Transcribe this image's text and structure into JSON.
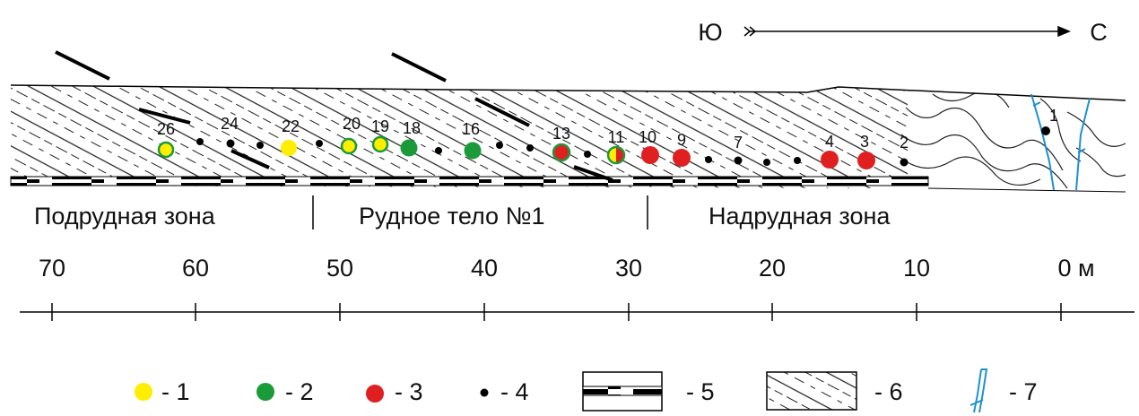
{
  "header": {
    "south": "Ю",
    "north": "С"
  },
  "zones": [
    "Подрудная зона",
    "Рудное тело №1",
    "Надрудная зона"
  ],
  "scale": [
    "70",
    "60",
    "50",
    "40",
    "30",
    "20",
    "10",
    "0 м"
  ],
  "samples": [
    "26",
    "24",
    "22",
    "20",
    "19",
    "18",
    "16",
    "13",
    "11",
    "10",
    "9",
    "7",
    "4",
    "3",
    "2",
    "1"
  ],
  "legend": [
    "- 1",
    "- 2",
    "- 3",
    "- 4",
    "- 5",
    "- 6",
    "- 7"
  ]
}
